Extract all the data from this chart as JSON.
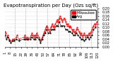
{
  "title": "Evapotranspiration per Day (Ozs sq/ft)",
  "background_color": "#ffffff",
  "plot_bg_color": "#ffffff",
  "x_values": [
    1,
    2,
    3,
    4,
    5,
    6,
    7,
    8,
    9,
    10,
    11,
    12,
    13,
    14,
    15,
    16,
    17,
    18,
    19,
    20,
    21,
    22,
    23,
    24,
    25,
    26,
    27,
    28,
    29,
    30,
    31,
    32,
    33,
    34,
    35,
    36,
    37,
    38,
    39,
    40,
    41,
    42,
    43,
    44,
    45,
    46,
    47,
    48,
    49,
    50,
    51,
    52,
    53,
    54,
    55,
    56,
    57,
    58,
    59,
    60,
    61,
    62,
    63,
    64,
    65,
    66,
    67,
    68,
    69,
    70,
    71,
    72,
    73,
    74,
    75,
    76,
    77,
    78,
    79,
    80,
    81,
    82,
    83,
    84,
    85,
    86,
    87,
    88,
    89,
    90,
    91,
    92,
    93,
    94,
    95,
    96,
    97,
    98,
    99,
    100,
    101,
    102,
    103,
    104,
    105,
    106,
    107,
    108,
    109,
    110,
    111,
    112,
    113,
    114,
    115,
    116,
    117,
    118,
    119,
    120
  ],
  "red_values": [
    0.08,
    0.07,
    null,
    0.05,
    0.06,
    null,
    0.04,
    0.03,
    null,
    0.03,
    0.04,
    null,
    0.04,
    null,
    null,
    0.05,
    0.06,
    null,
    0.04,
    null,
    null,
    null,
    null,
    null,
    null,
    0.05,
    0.06,
    0.05,
    0.04,
    0.05,
    0.04,
    null,
    null,
    0.05,
    0.06,
    0.07,
    0.06,
    0.05,
    0.06,
    0.05,
    0.06,
    0.07,
    0.06,
    null,
    0.05,
    0.04,
    0.03,
    0.04,
    0.05,
    0.06,
    0.07,
    0.08,
    0.09,
    0.1,
    0.11,
    0.1,
    0.09,
    0.08,
    0.09,
    0.1,
    0.11,
    0.12,
    0.11,
    0.1,
    0.11,
    0.12,
    0.13,
    0.14,
    0.13,
    0.14,
    0.15,
    0.16,
    0.15,
    0.14,
    0.13,
    0.14,
    0.15,
    0.14,
    0.13,
    0.12,
    0.11,
    0.12,
    0.11,
    0.1,
    0.11,
    0.1,
    0.09,
    0.08,
    0.09,
    0.08,
    0.07,
    0.08,
    0.09,
    0.1,
    0.09,
    0.08,
    0.07,
    0.06,
    0.07,
    0.06,
    0.05,
    0.06,
    0.07,
    0.06,
    0.05,
    0.06,
    0.05,
    0.06,
    0.07,
    0.06,
    0.07,
    0.08,
    0.09,
    0.1,
    0.11,
    0.12,
    0.11,
    0.12,
    0.13
  ],
  "black_values": [
    0.06,
    null,
    0.04,
    null,
    0.05,
    null,
    0.03,
    null,
    0.02,
    null,
    0.03,
    null,
    0.03,
    null,
    null,
    0.04,
    null,
    null,
    0.03,
    null,
    null,
    null,
    null,
    null,
    null,
    0.04,
    null,
    0.04,
    null,
    0.04,
    null,
    null,
    null,
    0.04,
    null,
    0.05,
    null,
    0.04,
    null,
    0.04,
    null,
    0.05,
    null,
    null,
    0.04,
    null,
    0.02,
    null,
    0.04,
    null,
    0.06,
    null,
    0.07,
    null,
    0.09,
    null,
    0.07,
    null,
    0.07,
    null,
    0.09,
    null,
    0.09,
    null,
    0.09,
    null,
    0.11,
    null,
    0.11,
    null,
    0.13,
    null,
    0.11,
    null,
    0.11,
    null,
    0.11,
    null,
    0.09,
    null,
    0.09,
    null,
    0.08,
    null,
    0.08,
    null,
    0.07,
    null,
    0.06,
    null,
    0.06,
    null,
    0.07,
    null,
    0.06,
    null,
    0.05,
    null,
    0.04,
    null,
    0.04,
    null,
    0.03,
    null,
    0.04,
    null,
    0.05,
    null,
    0.04,
    null,
    0.05,
    null,
    0.06,
    null,
    0.09,
    null,
    0.1,
    null,
    null,
    null,
    null,
    null
  ],
  "ylim": [
    0.0,
    0.2
  ],
  "yticks": [
    0.0,
    0.02,
    0.04,
    0.06,
    0.08,
    0.1,
    0.12,
    0.14,
    0.16,
    0.18,
    0.2
  ],
  "ytick_labels": [
    "0.00",
    "0.02",
    "0.04",
    "0.06",
    "0.08",
    "0.10",
    "0.12",
    "0.14",
    "0.16",
    "0.18",
    "0.20"
  ],
  "vline_positions": [
    14,
    28,
    42,
    56,
    70,
    84,
    98,
    112
  ],
  "legend_label_red": "Milwaukee",
  "legend_label_black": "Avg",
  "title_fontsize": 5,
  "tick_fontsize": 3.5,
  "legend_fontsize": 3.5
}
